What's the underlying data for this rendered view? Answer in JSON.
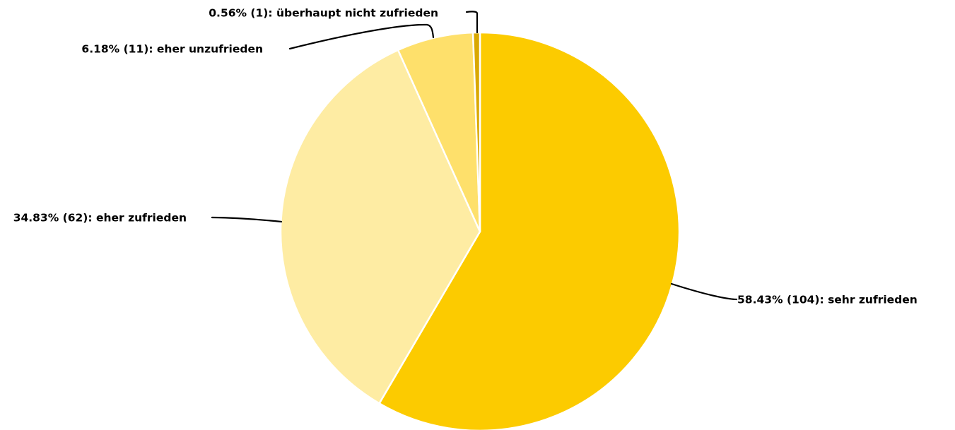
{
  "chart_data": {
    "type": "pie",
    "slices": [
      {
        "label": "58.43% (104): sehr zufrieden",
        "category": "sehr zufrieden",
        "percent": 58.43,
        "count": 104,
        "color": "#FCCB00"
      },
      {
        "label": "34.83% (62): eher zufrieden",
        "category": "eher zufrieden",
        "percent": 34.83,
        "count": 62,
        "color": "#FEECA3"
      },
      {
        "label": "6.18% (11): eher unzufrieden",
        "category": "eher unzufrieden",
        "percent": 6.18,
        "count": 11,
        "color": "#FEE06B"
      },
      {
        "label": "0.56% (1): überhaupt nicht zufrieden",
        "category": "überhaupt nicht zufrieden",
        "percent": 0.56,
        "count": 1,
        "color": "#D9A800"
      }
    ],
    "start_angle": "12 o'clock",
    "direction": "clockwise",
    "legend": "none",
    "labels": "outside with leader lines"
  }
}
